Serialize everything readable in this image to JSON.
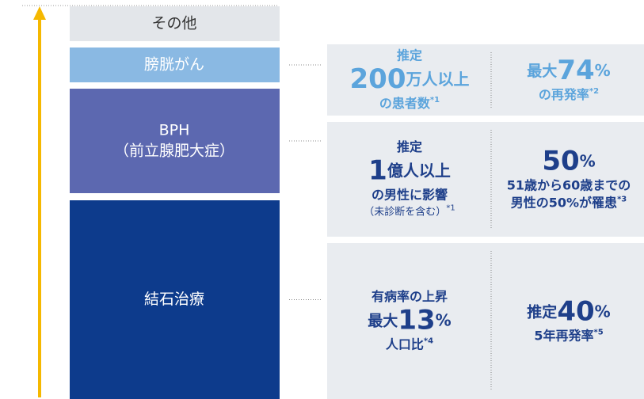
{
  "blocks": [
    {
      "lines": [
        "その他"
      ],
      "color": "#e3e6ea",
      "text_color": "#333333"
    },
    {
      "lines": [
        "膀胱がん"
      ],
      "color": "#8ab9e3",
      "text_color": "#ffffff"
    },
    {
      "lines": [
        "BPH",
        "（前立腺肥大症）"
      ],
      "color": "#5c68b0",
      "text_color": "#ffffff"
    },
    {
      "lines": [
        "結石治療"
      ],
      "color": "#0d3b8c",
      "text_color": "#ffffff"
    }
  ],
  "panels": [
    {
      "color": "#5ba4dc",
      "columns": [
        {
          "pre": [
            "推定"
          ],
          "number": "200",
          "unit": "万人以上",
          "post": [
            {
              "text": "の患者数",
              "note": "*1"
            }
          ]
        },
        {
          "lead": "最大",
          "number": "74",
          "unit": "%",
          "post": [
            {
              "text": "の再発率",
              "note": "*2"
            }
          ]
        }
      ]
    },
    {
      "color": "#1e3f8a",
      "columns": [
        {
          "pre": [
            "推定"
          ],
          "number": "1",
          "unit": "億人以上",
          "post": [
            {
              "text": "の男性に影響"
            },
            {
              "text": "（未診断を含む）",
              "note": "*1",
              "small": true
            }
          ]
        },
        {
          "number": "50",
          "unit": "%",
          "post": [
            {
              "text": "51歳から60歳までの"
            },
            {
              "text": "男性の50%が罹患",
              "note": "*3"
            }
          ]
        }
      ]
    },
    {
      "color": "#1e3f8a",
      "columns": [
        {
          "pre": [
            "有病率の上昇"
          ],
          "lead": "最大",
          "number": "13",
          "unit": "%",
          "post": [
            {
              "text": "人口比",
              "note": "*4"
            }
          ]
        },
        {
          "lead": "推定",
          "number": "40",
          "unit": "%",
          "post": [
            {
              "text": "5年再発率",
              "note": "*5"
            }
          ]
        }
      ]
    }
  ]
}
